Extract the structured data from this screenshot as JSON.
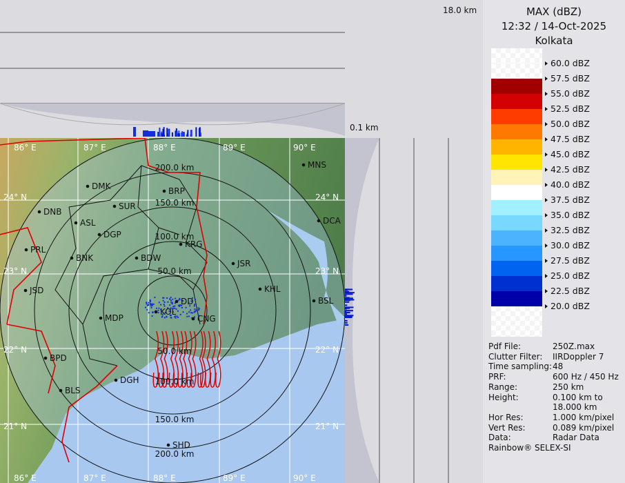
{
  "header": {
    "product": "MAX (dBZ)",
    "datetime": "12:32 / 14-Oct-2025",
    "station": "Kolkata"
  },
  "height_labels": {
    "top": "18.0 km",
    "bottom": "0.1 km"
  },
  "legend": [
    {
      "label": "60.0 dBZ",
      "color": "checker"
    },
    {
      "label": "57.5 dBZ",
      "color": "checker"
    },
    {
      "label": "55.0 dBZ",
      "color": "#a00000"
    },
    {
      "label": "52.5 dBZ",
      "color": "#d20000"
    },
    {
      "label": "50.0 dBZ",
      "color": "#ff3c00"
    },
    {
      "label": "47.5 dBZ",
      "color": "#ff7800"
    },
    {
      "label": "45.0 dBZ",
      "color": "#ffb400"
    },
    {
      "label": "42.5 dBZ",
      "color": "#ffe600"
    },
    {
      "label": "40.0 dBZ",
      "color": "#fff3b8"
    },
    {
      "label": "37.5 dBZ",
      "color": "#ffffff"
    },
    {
      "label": "35.0 dBZ",
      "color": "#a0f0ff"
    },
    {
      "label": "32.5 dBZ",
      "color": "#78d8ff"
    },
    {
      "label": "30.0 dBZ",
      "color": "#4cb4ff"
    },
    {
      "label": "27.5 dBZ",
      "color": "#2896ff"
    },
    {
      "label": "25.0 dBZ",
      "color": "#0064f0"
    },
    {
      "label": "22.5 dBZ",
      "color": "#0030d0"
    },
    {
      "label": "20.0 dBZ",
      "color": "#0000a8"
    }
  ],
  "info": [
    {
      "key": "Pdf File:",
      "value": "250Z.max"
    },
    {
      "key": "Clutter Filter:",
      "value": "IIRDoppler 7"
    },
    {
      "key": "Time sampling:",
      "value": "48"
    },
    {
      "key": "PRF:",
      "value": "600 Hz / 450 Hz"
    },
    {
      "key": "Range:",
      "value": "250 km"
    },
    {
      "key": "Height:",
      "value": "0.100 km to"
    },
    {
      "key": "",
      "value": "18.000 km"
    },
    {
      "key": "Hor Res:",
      "value": "1.000 km/pixel"
    },
    {
      "key": "Vert Res:",
      "value": "0.089 km/pixel"
    },
    {
      "key": "Data:",
      "value": "Radar Data"
    }
  ],
  "credit": "Rainbow® SELEX-SI",
  "map": {
    "lon_labels": [
      "86° E",
      "87° E",
      "88° E",
      "89° E",
      "90° E"
    ],
    "lat_labels": [
      "24° N",
      "23° N",
      "22° N",
      "21° N"
    ],
    "range_labels_north": [
      "200.0 km",
      "150.0 km",
      "100.0 km",
      "50.0 km"
    ],
    "range_labels_south": [
      "50.0 km",
      "100.0 km",
      "150.0 km",
      "200.0 km"
    ],
    "cities": [
      "DMK",
      "BRP",
      "SUR",
      "DNB",
      "ASL",
      "DGP",
      "KRG",
      "PRL",
      "BNK",
      "BDW",
      "JSR",
      "KHL",
      "BSL",
      "JSD",
      "MDP",
      "DD",
      "KOL",
      "CNG",
      "BPD",
      "DGH",
      "BLS",
      "SHD",
      "MNS",
      "DCA"
    ],
    "colors": {
      "land": "#6e9a5a",
      "sea": "#a8c8f0",
      "border": "#e00000",
      "rings": "#111111",
      "echo": "#1030e0"
    }
  }
}
